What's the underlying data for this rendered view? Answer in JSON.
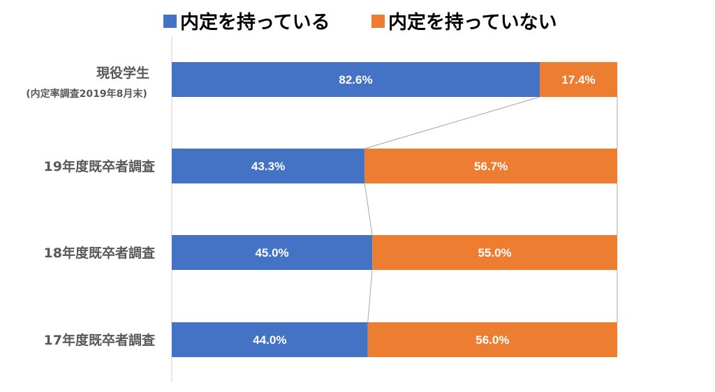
{
  "chart_data": {
    "type": "bar",
    "orientation": "horizontal",
    "stacked": "percent",
    "categories": [
      {
        "label": "現役学生",
        "sublabel": "(内定率調査2019年8月末)"
      },
      {
        "label": "19年度既卒者調査",
        "sublabel": ""
      },
      {
        "label": "18年度既卒者調査",
        "sublabel": ""
      },
      {
        "label": "17年度既卒者調査",
        "sublabel": ""
      }
    ],
    "series": [
      {
        "name": "内定を持っている",
        "color": "#4472C4",
        "values": [
          82.6,
          43.3,
          45.0,
          44.0
        ]
      },
      {
        "name": "内定を持っていない",
        "color": "#ED7D31",
        "values": [
          17.4,
          56.7,
          55.0,
          56.0
        ]
      }
    ],
    "value_suffix": "%",
    "xlim": [
      0,
      100
    ],
    "legend_position": "top",
    "series_lines": true,
    "grid": false
  }
}
